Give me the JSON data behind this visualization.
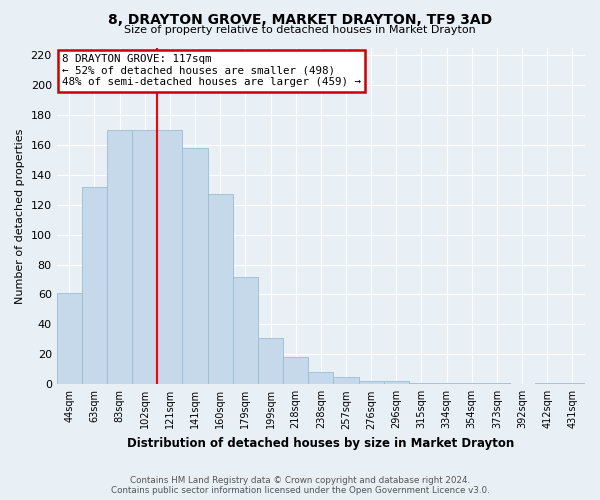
{
  "title": "8, DRAYTON GROVE, MARKET DRAYTON, TF9 3AD",
  "subtitle": "Size of property relative to detached houses in Market Drayton",
  "xlabel": "Distribution of detached houses by size in Market Drayton",
  "ylabel": "Number of detached properties",
  "bar_labels": [
    "44sqm",
    "63sqm",
    "83sqm",
    "102sqm",
    "121sqm",
    "141sqm",
    "160sqm",
    "179sqm",
    "199sqm",
    "218sqm",
    "238sqm",
    "257sqm",
    "276sqm",
    "296sqm",
    "315sqm",
    "334sqm",
    "354sqm",
    "373sqm",
    "392sqm",
    "412sqm",
    "431sqm"
  ],
  "bar_values": [
    61,
    132,
    170,
    170,
    170,
    158,
    127,
    72,
    31,
    18,
    8,
    5,
    2,
    2,
    1,
    1,
    1,
    1,
    0,
    1,
    1
  ],
  "bar_color": "#c5d9ea",
  "bar_edge_color": "#9bbdd4",
  "vline_x": 4,
  "vline_color": "red",
  "annotation_title": "8 DRAYTON GROVE: 117sqm",
  "annotation_line1": "← 52% of detached houses are smaller (498)",
  "annotation_line2": "48% of semi-detached houses are larger (459) →",
  "annotation_box_color": "white",
  "annotation_box_edge": "#cc0000",
  "ylim": [
    0,
    225
  ],
  "yticks": [
    0,
    20,
    40,
    60,
    80,
    100,
    120,
    140,
    160,
    180,
    200,
    220
  ],
  "footer_line1": "Contains HM Land Registry data © Crown copyright and database right 2024.",
  "footer_line2": "Contains public sector information licensed under the Open Government Licence v3.0.",
  "bg_color": "#e8eff5"
}
